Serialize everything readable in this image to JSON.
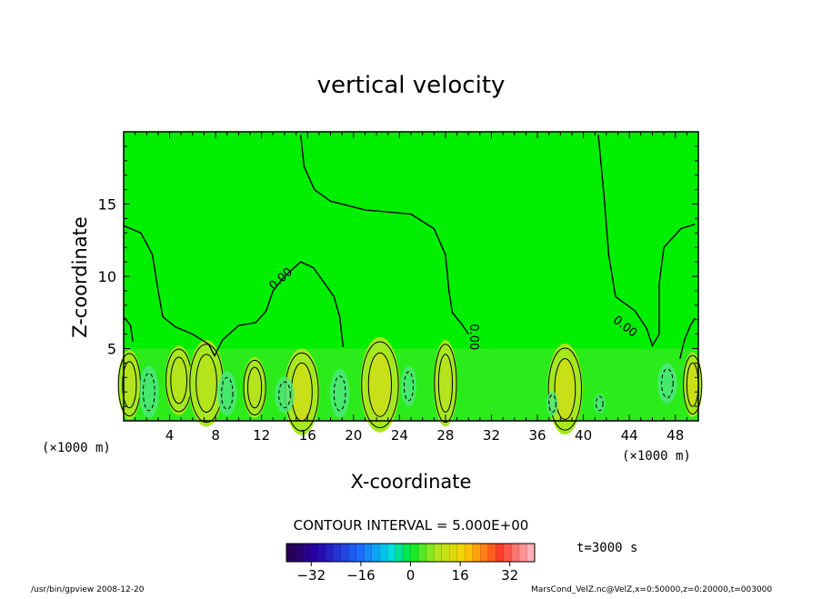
{
  "chart_data": {
    "type": "heatmap",
    "title": "vertical velocity",
    "xlabel": "X-coordinate",
    "ylabel": "Z-coordinate",
    "x_unit": "(×1000 m)",
    "x_unit_right": "(×1000 m)",
    "xlim": [
      0,
      50
    ],
    "ylim": [
      0,
      20
    ],
    "x_ticks": [
      4,
      8,
      12,
      16,
      20,
      24,
      28,
      32,
      36,
      40,
      44,
      48
    ],
    "y_ticks": [
      5,
      10,
      15
    ],
    "contour_interval_label": "CONTOUR INTERVAL = 5.000E+00",
    "contour_labels": [
      {
        "text": "0.00",
        "x": 13.7,
        "y": 9.8,
        "angle": -42
      },
      {
        "text": "0.00",
        "x": 30.4,
        "y": 5.8,
        "angle": 90
      },
      {
        "text": "0.00",
        "x": 43.6,
        "y": 6.5,
        "angle": 38
      }
    ],
    "zero_contours": [
      [
        [
          0,
          13.5
        ],
        [
          1.5,
          13
        ],
        [
          2.5,
          11.5
        ],
        [
          3,
          9
        ],
        [
          3.4,
          7.2
        ],
        [
          4.5,
          6.5
        ],
        [
          6,
          6
        ],
        [
          7.4,
          5.3
        ],
        [
          7.9,
          4.5
        ],
        [
          8.6,
          5.6
        ],
        [
          10,
          6.6
        ],
        [
          11.5,
          6.8
        ],
        [
          12.4,
          7.6
        ],
        [
          13,
          9
        ],
        [
          14,
          10
        ],
        [
          15.4,
          11
        ],
        [
          16.5,
          10.6
        ],
        [
          17.5,
          9.5
        ],
        [
          18.3,
          8.6
        ],
        [
          18.8,
          7.2
        ],
        [
          19.1,
          5.1
        ]
      ],
      [
        [
          15.4,
          19.8
        ],
        [
          15.7,
          17.6
        ],
        [
          16.6,
          16
        ],
        [
          18,
          15.2
        ],
        [
          21,
          14.6
        ],
        [
          25,
          14.3
        ],
        [
          27,
          13.3
        ],
        [
          28,
          11.5
        ],
        [
          28.3,
          9
        ],
        [
          28.6,
          7.5
        ],
        [
          29.5,
          6.6
        ],
        [
          30,
          6
        ]
      ],
      [
        [
          41.3,
          19.8
        ],
        [
          41.8,
          15.5
        ],
        [
          42.2,
          11.5
        ],
        [
          42.8,
          8.6
        ],
        [
          44.5,
          7.6
        ],
        [
          45.5,
          6.4
        ],
        [
          46,
          5.2
        ],
        [
          46.6,
          6
        ],
        [
          46.6,
          9.5
        ],
        [
          47,
          12
        ],
        [
          48.5,
          13.3
        ],
        [
          49.7,
          13.6
        ]
      ],
      [
        [
          49.7,
          7.1
        ],
        [
          49.3,
          6.6
        ],
        [
          48.8,
          5.6
        ],
        [
          48.4,
          4.3
        ]
      ],
      [
        [
          0,
          7.2
        ],
        [
          0.6,
          6.6
        ],
        [
          0.8,
          5.5
        ]
      ]
    ],
    "positive_cells": [
      {
        "x": 0.5,
        "y": 2.5,
        "rx": 0.6,
        "ry": 1.6,
        "v": 7
      },
      {
        "x": 4.8,
        "y": 2.8,
        "rx": 0.7,
        "ry": 1.6,
        "v": 6
      },
      {
        "x": 7.2,
        "y": 2.6,
        "rx": 0.9,
        "ry": 2.0,
        "v": 7
      },
      {
        "x": 11.4,
        "y": 2.3,
        "rx": 0.6,
        "ry": 1.4,
        "v": 4
      },
      {
        "x": 15.5,
        "y": 2.0,
        "rx": 0.9,
        "ry": 2.0,
        "v": 8
      },
      {
        "x": 22.3,
        "y": 2.5,
        "rx": 1.0,
        "ry": 2.2,
        "v": 9
      },
      {
        "x": 28.0,
        "y": 2.6,
        "rx": 0.6,
        "ry": 2.0,
        "v": 6
      },
      {
        "x": 38.4,
        "y": 2.2,
        "rx": 0.9,
        "ry": 2.1,
        "v": 10
      },
      {
        "x": 49.5,
        "y": 2.5,
        "rx": 0.5,
        "ry": 1.5,
        "v": 8
      }
    ],
    "negative_cells": [
      {
        "x": 2.2,
        "y": 2.0,
        "rx": 0.5,
        "ry": 1.3
      },
      {
        "x": 9.0,
        "y": 1.9,
        "rx": 0.5,
        "ry": 1.1
      },
      {
        "x": 14.0,
        "y": 1.8,
        "rx": 0.5,
        "ry": 0.9
      },
      {
        "x": 18.8,
        "y": 1.9,
        "rx": 0.5,
        "ry": 1.2
      },
      {
        "x": 24.8,
        "y": 2.4,
        "rx": 0.4,
        "ry": 1.0
      },
      {
        "x": 37.3,
        "y": 1.2,
        "rx": 0.3,
        "ry": 0.6
      },
      {
        "x": 41.4,
        "y": 1.2,
        "rx": 0.3,
        "ry": 0.5
      },
      {
        "x": 47.3,
        "y": 2.6,
        "rx": 0.5,
        "ry": 1.0
      }
    ],
    "colorbar": {
      "vmin": -40,
      "vmax": 40,
      "levels": 32,
      "ticks": [
        -32,
        -16,
        0,
        16,
        32
      ]
    },
    "time_label": "t=3000 s",
    "footer_left": "/usr/bin/gpview  2008-12-20",
    "footer_right": "MarsCond_VelZ.nc@VelZ,x=0:50000,z=0:20000,t=003000"
  }
}
